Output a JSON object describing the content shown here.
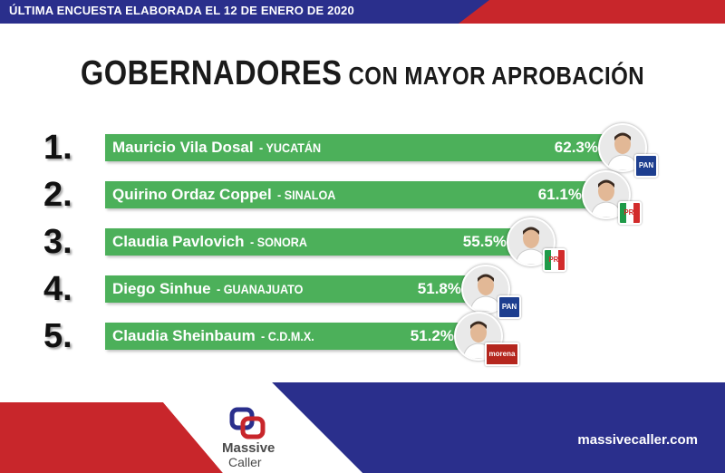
{
  "banner": "ÚLTIMA ENCUESTA ELABORADA EL 12 DE ENERO DE 2020",
  "title": {
    "part1": "GOBERNADORES",
    "part2": " CON MAYOR APROBACIÓN"
  },
  "chart_data": {
    "type": "bar",
    "orientation": "horizontal",
    "categories": [
      "Mauricio Vila Dosal - YUCATÁN",
      "Quirino Ordaz Coppel - SINALOA",
      "Claudia Pavlovich - SONORA",
      "Diego Sinhue - GUANAJUATO",
      "Claudia Sheinbaum - C.D.M.X."
    ],
    "values": [
      62.3,
      61.1,
      55.5,
      51.8,
      51.2
    ],
    "bar_color": "#4cb05a"
  },
  "rows": [
    {
      "rank": "1.",
      "name": "Mauricio Vila Dosal",
      "state": "- YUCATÁN",
      "pct": "62.3%",
      "party": "PAN",
      "party_icon": "pan-logo-icon"
    },
    {
      "rank": "2.",
      "name": "Quirino Ordaz Coppel",
      "state": "- SINALOA",
      "pct": "61.1%",
      "party": "PRI",
      "party_icon": "pri-logo-icon"
    },
    {
      "rank": "3.",
      "name": "Claudia Pavlovich",
      "state": "- SONORA",
      "pct": "55.5%",
      "party": "PRI",
      "party_icon": "pri-logo-icon"
    },
    {
      "rank": "4.",
      "name": "Diego Sinhue",
      "state": "- GUANAJUATO",
      "pct": "51.8%",
      "party": "PAN",
      "party_icon": "pan-logo-icon"
    },
    {
      "rank": "5.",
      "name": "Claudia Sheinbaum",
      "state": "- C.D.M.X.",
      "pct": "51.2%",
      "party": "morena",
      "party_icon": "morena-logo-icon"
    }
  ],
  "brand": {
    "word1": "Massive",
    "word2": "Caller",
    "website": "massivecaller.com"
  },
  "colors": {
    "navy": "#2a2f8c",
    "red": "#c8262b",
    "green": "#4cb05a"
  }
}
